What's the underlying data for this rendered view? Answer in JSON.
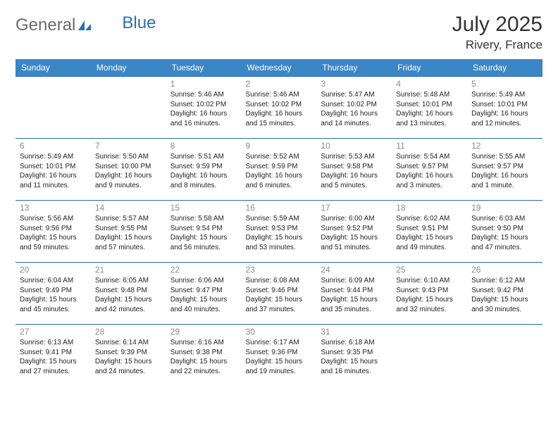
{
  "brand": {
    "name_general": "General",
    "name_blue": "Blue"
  },
  "title": "July 2025",
  "location": "Rivery, France",
  "colors": {
    "header_bg": "#3b86c6",
    "row_border": "#2d6aa8",
    "daynum": "#8a8a8a",
    "logo_gray": "#6a6a6a",
    "logo_blue": "#2b6fb0"
  },
  "day_headers": [
    "Sunday",
    "Monday",
    "Tuesday",
    "Wednesday",
    "Thursday",
    "Friday",
    "Saturday"
  ],
  "weeks": [
    [
      null,
      null,
      {
        "n": "1",
        "sr": "5:46 AM",
        "ss": "10:02 PM",
        "dl": "16 hours and 16 minutes."
      },
      {
        "n": "2",
        "sr": "5:46 AM",
        "ss": "10:02 PM",
        "dl": "16 hours and 15 minutes."
      },
      {
        "n": "3",
        "sr": "5:47 AM",
        "ss": "10:02 PM",
        "dl": "16 hours and 14 minutes."
      },
      {
        "n": "4",
        "sr": "5:48 AM",
        "ss": "10:01 PM",
        "dl": "16 hours and 13 minutes."
      },
      {
        "n": "5",
        "sr": "5:49 AM",
        "ss": "10:01 PM",
        "dl": "16 hours and 12 minutes."
      }
    ],
    [
      {
        "n": "6",
        "sr": "5:49 AM",
        "ss": "10:01 PM",
        "dl": "16 hours and 11 minutes."
      },
      {
        "n": "7",
        "sr": "5:50 AM",
        "ss": "10:00 PM",
        "dl": "16 hours and 9 minutes."
      },
      {
        "n": "8",
        "sr": "5:51 AM",
        "ss": "9:59 PM",
        "dl": "16 hours and 8 minutes."
      },
      {
        "n": "9",
        "sr": "5:52 AM",
        "ss": "9:59 PM",
        "dl": "16 hours and 6 minutes."
      },
      {
        "n": "10",
        "sr": "5:53 AM",
        "ss": "9:58 PM",
        "dl": "16 hours and 5 minutes."
      },
      {
        "n": "11",
        "sr": "5:54 AM",
        "ss": "9:57 PM",
        "dl": "16 hours and 3 minutes."
      },
      {
        "n": "12",
        "sr": "5:55 AM",
        "ss": "9:57 PM",
        "dl": "16 hours and 1 minute."
      }
    ],
    [
      {
        "n": "13",
        "sr": "5:56 AM",
        "ss": "9:56 PM",
        "dl": "15 hours and 59 minutes."
      },
      {
        "n": "14",
        "sr": "5:57 AM",
        "ss": "9:55 PM",
        "dl": "15 hours and 57 minutes."
      },
      {
        "n": "15",
        "sr": "5:58 AM",
        "ss": "9:54 PM",
        "dl": "15 hours and 56 minutes."
      },
      {
        "n": "16",
        "sr": "5:59 AM",
        "ss": "9:53 PM",
        "dl": "15 hours and 53 minutes."
      },
      {
        "n": "17",
        "sr": "6:00 AM",
        "ss": "9:52 PM",
        "dl": "15 hours and 51 minutes."
      },
      {
        "n": "18",
        "sr": "6:02 AM",
        "ss": "9:51 PM",
        "dl": "15 hours and 49 minutes."
      },
      {
        "n": "19",
        "sr": "6:03 AM",
        "ss": "9:50 PM",
        "dl": "15 hours and 47 minutes."
      }
    ],
    [
      {
        "n": "20",
        "sr": "6:04 AM",
        "ss": "9:49 PM",
        "dl": "15 hours and 45 minutes."
      },
      {
        "n": "21",
        "sr": "6:05 AM",
        "ss": "9:48 PM",
        "dl": "15 hours and 42 minutes."
      },
      {
        "n": "22",
        "sr": "6:06 AM",
        "ss": "9:47 PM",
        "dl": "15 hours and 40 minutes."
      },
      {
        "n": "23",
        "sr": "6:08 AM",
        "ss": "9:46 PM",
        "dl": "15 hours and 37 minutes."
      },
      {
        "n": "24",
        "sr": "6:09 AM",
        "ss": "9:44 PM",
        "dl": "15 hours and 35 minutes."
      },
      {
        "n": "25",
        "sr": "6:10 AM",
        "ss": "9:43 PM",
        "dl": "15 hours and 32 minutes."
      },
      {
        "n": "26",
        "sr": "6:12 AM",
        "ss": "9:42 PM",
        "dl": "15 hours and 30 minutes."
      }
    ],
    [
      {
        "n": "27",
        "sr": "6:13 AM",
        "ss": "9:41 PM",
        "dl": "15 hours and 27 minutes."
      },
      {
        "n": "28",
        "sr": "6:14 AM",
        "ss": "9:39 PM",
        "dl": "15 hours and 24 minutes."
      },
      {
        "n": "29",
        "sr": "6:16 AM",
        "ss": "9:38 PM",
        "dl": "15 hours and 22 minutes."
      },
      {
        "n": "30",
        "sr": "6:17 AM",
        "ss": "9:36 PM",
        "dl": "15 hours and 19 minutes."
      },
      {
        "n": "31",
        "sr": "6:18 AM",
        "ss": "9:35 PM",
        "dl": "15 hours and 16 minutes."
      },
      null,
      null
    ]
  ],
  "labels": {
    "sunrise": "Sunrise:",
    "sunset": "Sunset:",
    "daylight": "Daylight:"
  }
}
